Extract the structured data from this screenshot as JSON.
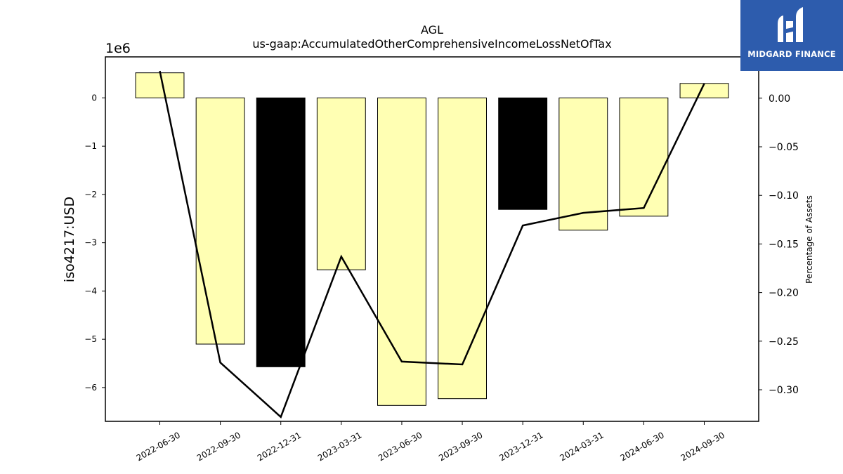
{
  "chart_data": {
    "type": "bar",
    "title": "AGL",
    "subtitle": "us-gaap:AccumulatedOtherComprehensiveIncomeLossNetOfTax",
    "ylabel": "iso4217:USD",
    "y_offset_label": "1e6",
    "y2label": "Percentage of Assets",
    "categories": [
      "2022-06-30",
      "2022-09-30",
      "2022-12-31",
      "2023-03-31",
      "2023-06-30",
      "2023-09-30",
      "2023-12-31",
      "2024-03-31",
      "2024-06-30",
      "2024-09-30"
    ],
    "values": [
      0.52,
      -5.1,
      -5.57,
      -3.56,
      -6.37,
      -6.23,
      -2.31,
      -2.74,
      -2.45,
      0.3
    ],
    "bar_colors": [
      "#ffffb3",
      "#ffffb3",
      "#000000",
      "#ffffb3",
      "#ffffb3",
      "#ffffb3",
      "#000000",
      "#ffffb3",
      "#ffffb3",
      "#ffffb3"
    ],
    "ylim": [
      -6.7,
      0.85
    ],
    "yticks": [
      0,
      -1,
      -2,
      -3,
      -4,
      -5,
      -6
    ],
    "ytick_labels": [
      "0",
      "−1",
      "−2",
      "−3",
      "−4",
      "−5",
      "−6"
    ],
    "line_values": [
      0.028,
      -0.272,
      -0.328,
      -0.163,
      -0.271,
      -0.274,
      -0.131,
      -0.118,
      -0.113,
      0.015
    ],
    "y2lim": [
      -0.3325,
      0.0425
    ],
    "y2ticks": [
      0.0,
      -0.05,
      -0.1,
      -0.15,
      -0.2,
      -0.25,
      -0.3
    ],
    "y2tick_labels": [
      "0.00",
      "−0.05",
      "−0.10",
      "−0.15",
      "−0.20",
      "−0.25",
      "−0.30"
    ],
    "grid": false,
    "line_color": "#000000"
  },
  "logo": {
    "text": "MIDGARD FINANCE",
    "bg_color": "#2d5cad"
  }
}
